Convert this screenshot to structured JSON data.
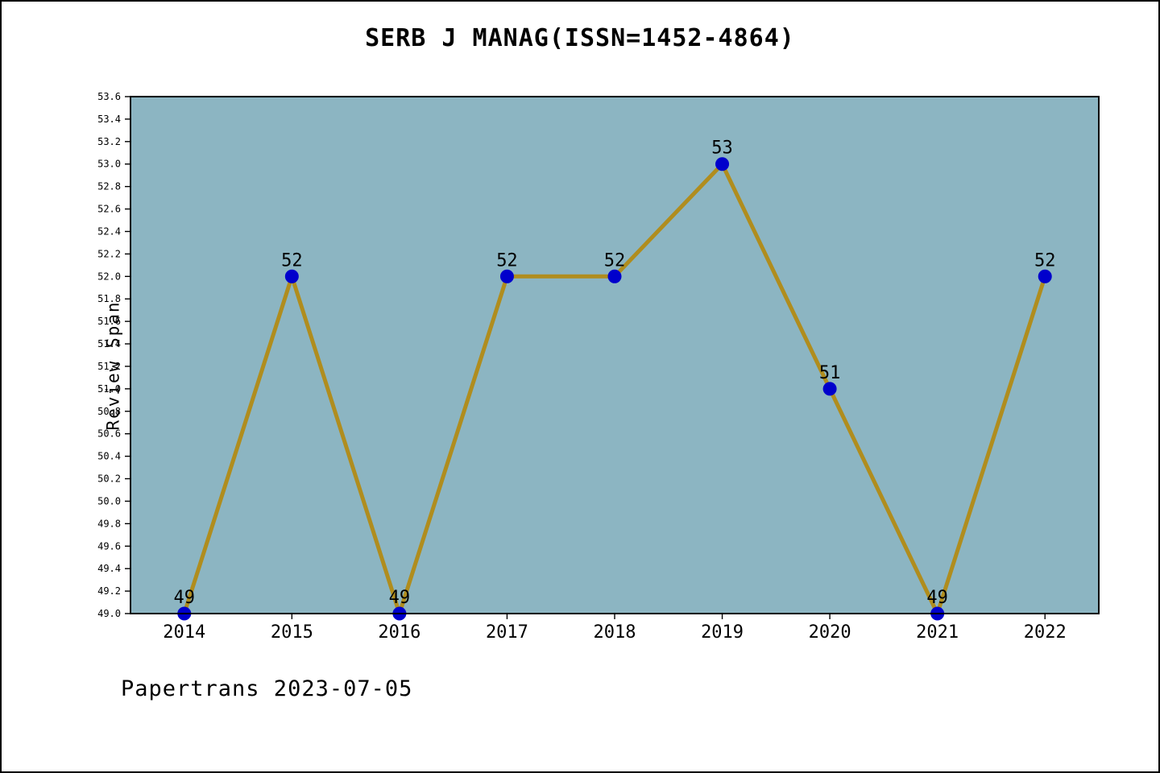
{
  "chart": {
    "title": "SERB J MANAG(ISSN=1452-4864)",
    "ylabel": "Review Span",
    "footer": "Papertrans 2023-07-05"
  },
  "chart_data": {
    "type": "line",
    "title": "SERB J MANAG(ISSN=1452-4864)",
    "xlabel": "",
    "ylabel": "Review Span",
    "categories": [
      "2014",
      "2015",
      "2016",
      "2017",
      "2018",
      "2019",
      "2020",
      "2021",
      "2022"
    ],
    "values": [
      49,
      52,
      49,
      52,
      52,
      53,
      51,
      49,
      52
    ],
    "point_labels": [
      "49",
      "52",
      "49",
      "52",
      "52",
      "53",
      "51",
      "49",
      "52"
    ],
    "ylim": [
      49.0,
      53.6
    ],
    "ytick_step": 0.2,
    "grid": false,
    "legend": null,
    "colors": {
      "line": "#b08d1e",
      "marker": "#0000cc",
      "plot_background": "#8cb5c2",
      "page_background": "#ffffff",
      "text": "#000000"
    }
  }
}
